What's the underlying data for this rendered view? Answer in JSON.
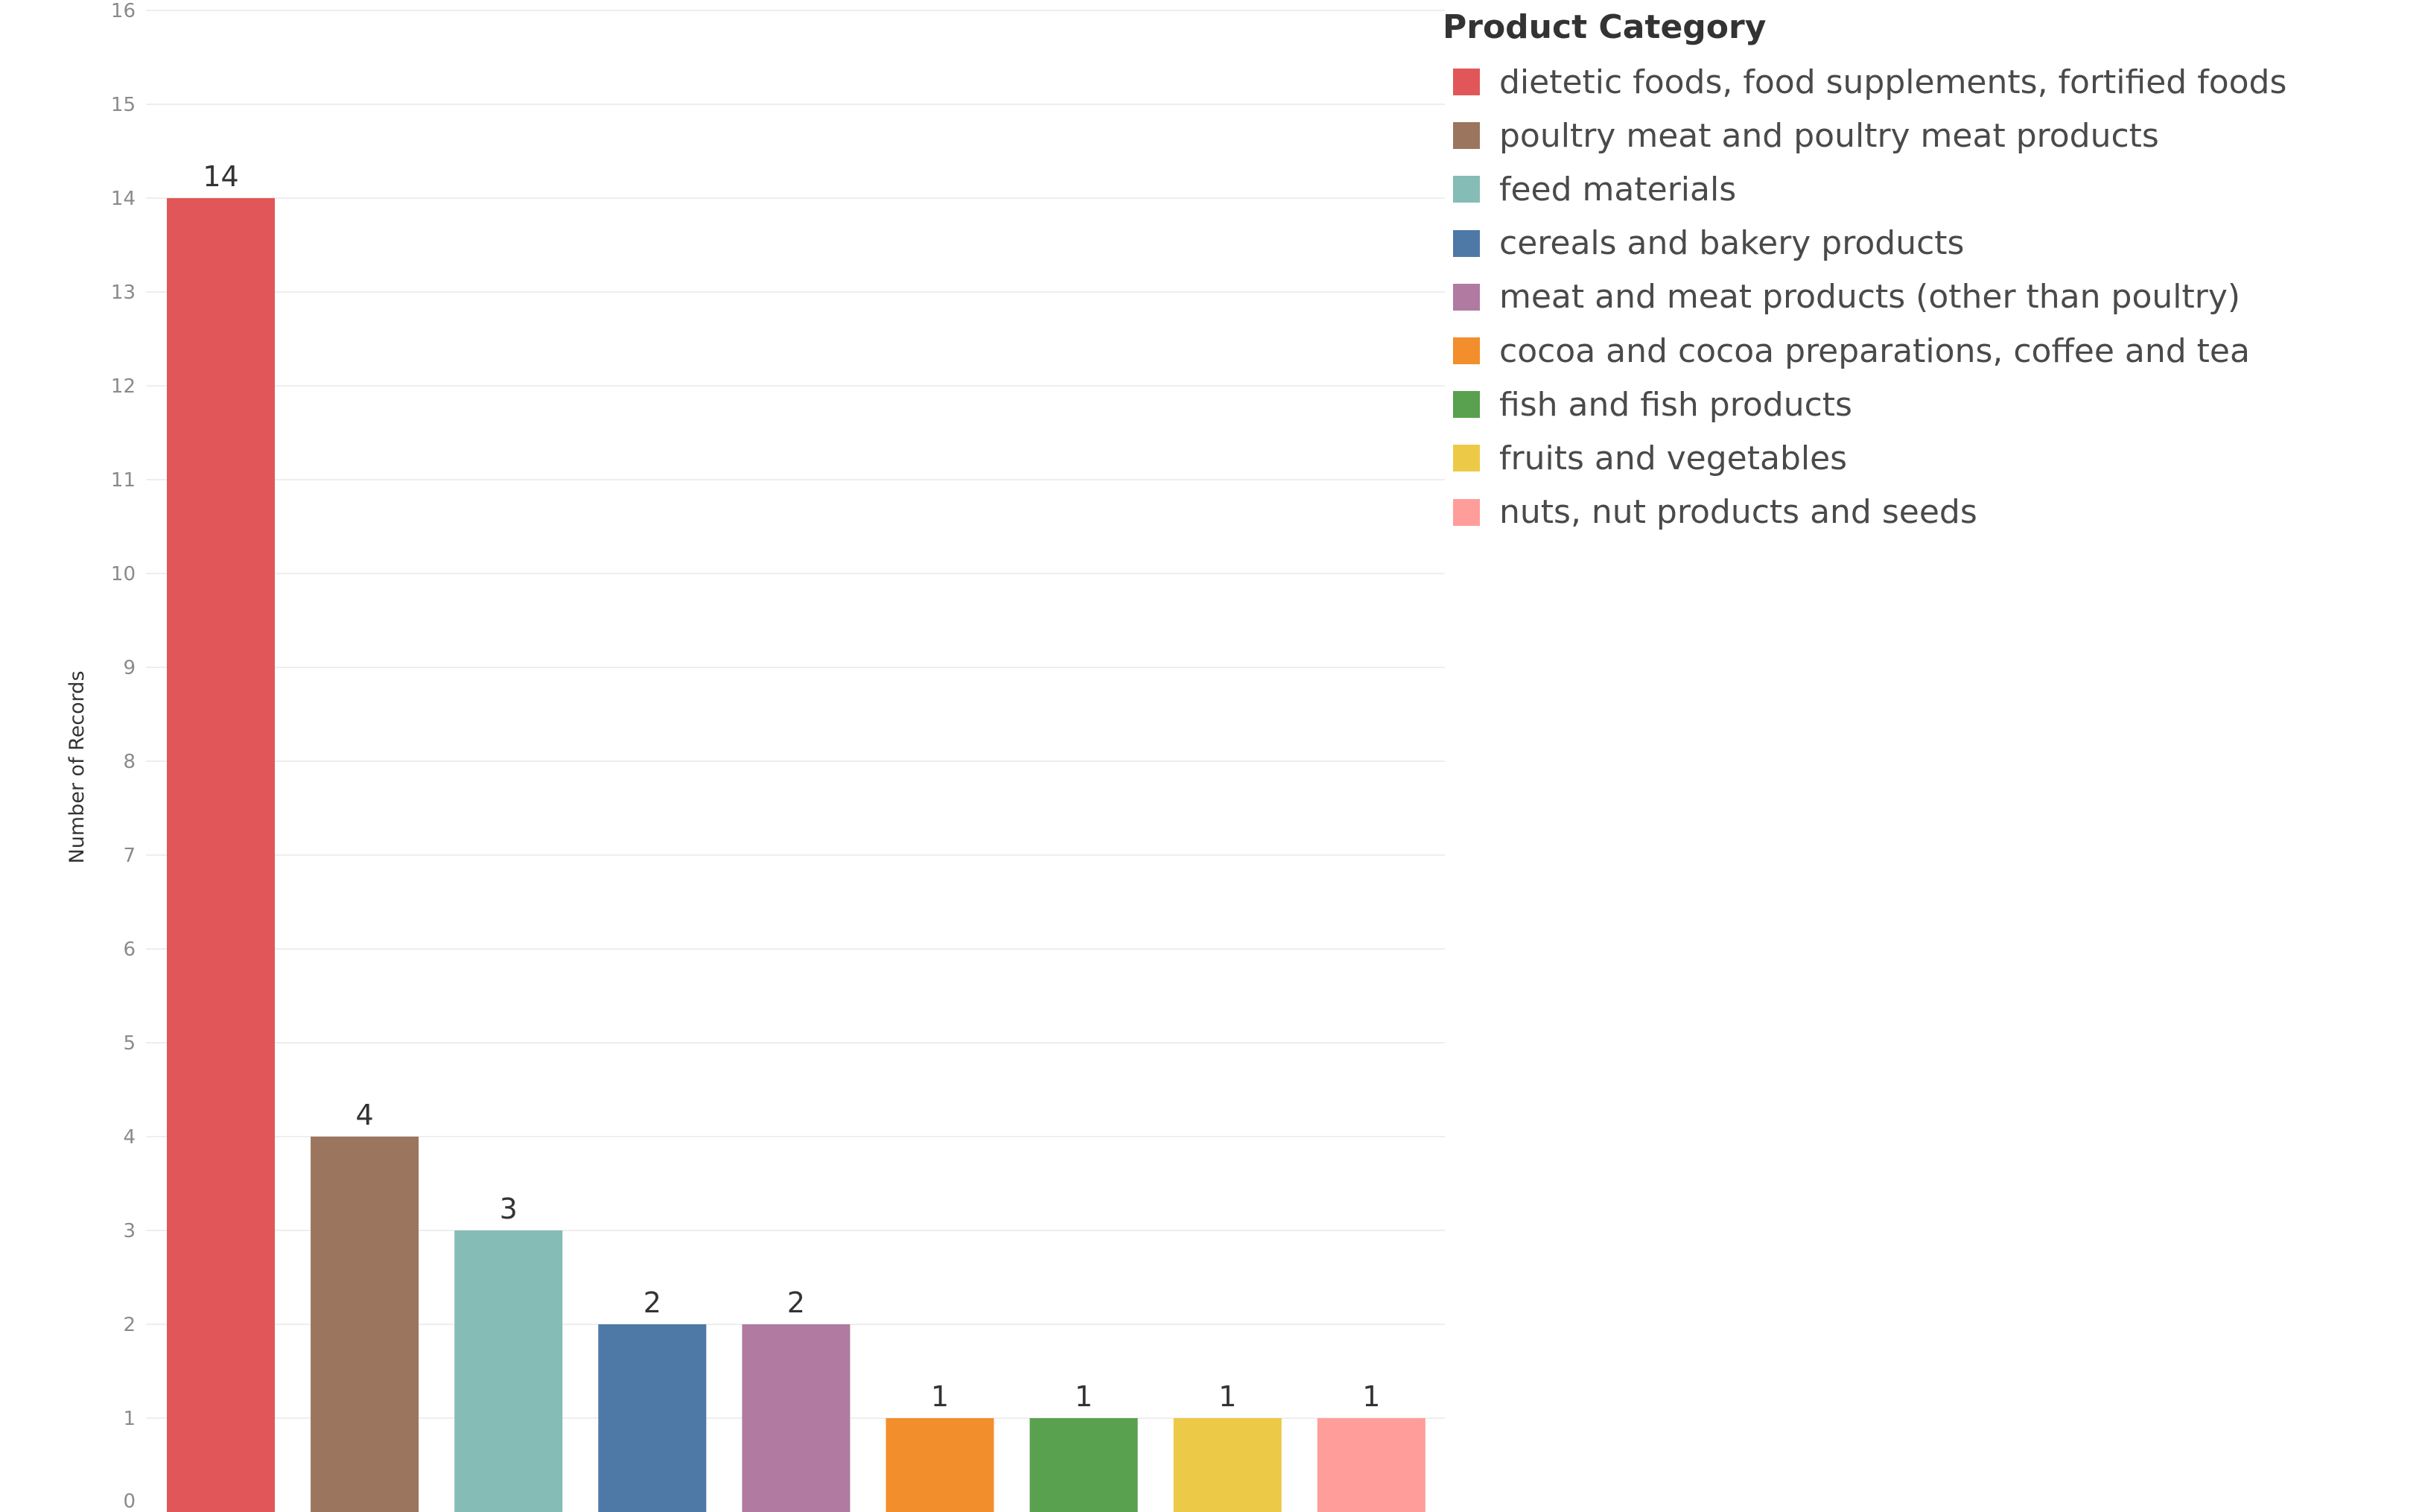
{
  "chart_data": {
    "type": "bar",
    "title": "",
    "xlabel": "",
    "ylabel": "Number of Records",
    "ylim": [
      0,
      16
    ],
    "yticks": [
      0,
      1,
      2,
      3,
      4,
      5,
      6,
      7,
      8,
      9,
      10,
      11,
      12,
      13,
      14,
      15,
      16
    ],
    "grid": true,
    "legend_position": "right",
    "legend_title": "Product Category",
    "categories": [
      "dietetic foods, food supplements, fortified foods",
      "poultry meat and poultry meat products",
      "feed materials",
      "cereals and bakery products",
      "meat and meat products (other than poultry)",
      "cocoa and cocoa preparations, coffee and tea",
      "fish and fish products",
      "fruits and vegetables",
      "nuts, nut products and seeds"
    ],
    "values": [
      14,
      4,
      3,
      2,
      2,
      1,
      1,
      1,
      1
    ],
    "colors": [
      "#e15759",
      "#9c755f",
      "#86bcb6",
      "#4e79a7",
      "#b07aa1",
      "#f28e2b",
      "#59a14f",
      "#edc948",
      "#ff9d9a"
    ]
  }
}
